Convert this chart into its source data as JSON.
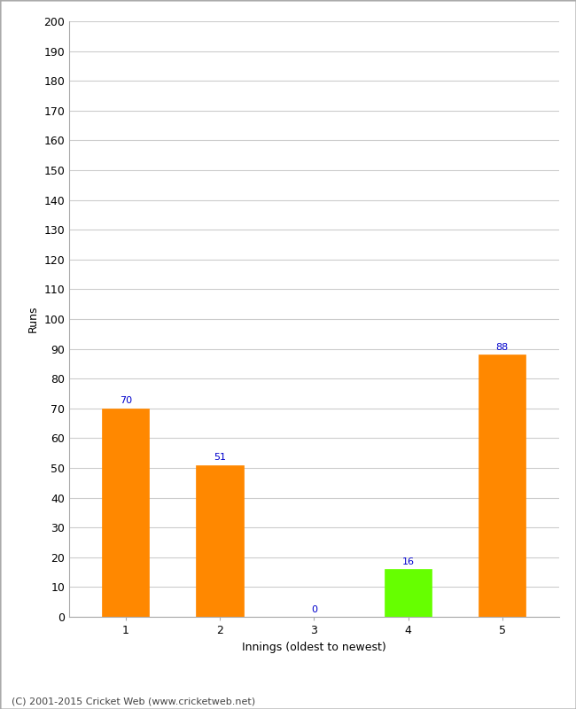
{
  "categories": [
    "1",
    "2",
    "3",
    "4",
    "5"
  ],
  "values": [
    70,
    51,
    0,
    16,
    88
  ],
  "bar_colors": [
    "#ff8800",
    "#ff8800",
    "#ff8800",
    "#66ff00",
    "#ff8800"
  ],
  "ylabel": "Runs",
  "xlabel": "Innings (oldest to newest)",
  "ylim": [
    0,
    200
  ],
  "yticks": [
    0,
    10,
    20,
    30,
    40,
    50,
    60,
    70,
    80,
    90,
    100,
    110,
    120,
    130,
    140,
    150,
    160,
    170,
    180,
    190,
    200
  ],
  "label_color": "#0000cc",
  "label_fontsize": 8,
  "footer": "(C) 2001-2015 Cricket Web (www.cricketweb.net)",
  "background_color": "#ffffff",
  "grid_color": "#cccccc",
  "border_color": "#aaaaaa"
}
